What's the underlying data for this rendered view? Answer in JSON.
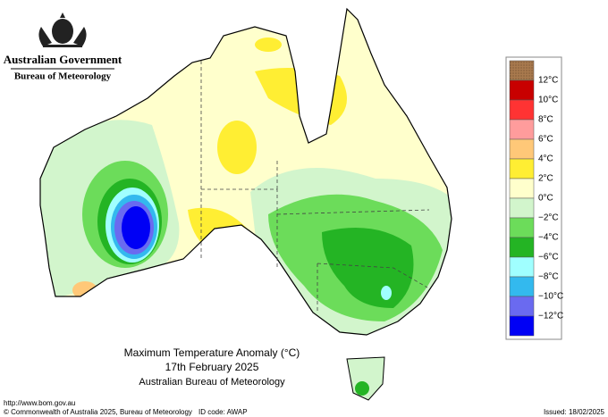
{
  "header": {
    "government": "Australian Government",
    "agency": "Bureau of Meteorology"
  },
  "map": {
    "title": "Maximum Temperature Anomaly (°C)",
    "date": "17th February 2025",
    "source": "Australian Bureau of Meteorology"
  },
  "legend": {
    "colors": [
      "#a97a4e",
      "#c80000",
      "#ff3333",
      "#ff9c9c",
      "#ffc878",
      "#ffee33",
      "#ffffcc",
      "#d2f5cc",
      "#6cdc5a",
      "#24b424",
      "#a0ffff",
      "#33b9ee",
      "#6a6af0",
      "#0000f5"
    ],
    "labels": [
      "12°C",
      "10°C",
      "8°C",
      "6°C",
      "4°C",
      "2°C",
      "0°C",
      "−2°C",
      "−4°C",
      "−6°C",
      "−8°C",
      "−10°C",
      "−12°C"
    ]
  },
  "footer": {
    "url": "http://www.bom.gov.au",
    "copyright": "© Commonwealth of Australia 2025, Bureau of Meteorology",
    "id_code": "ID code: AWAP",
    "issued": "Issued: 18/02/2025"
  }
}
